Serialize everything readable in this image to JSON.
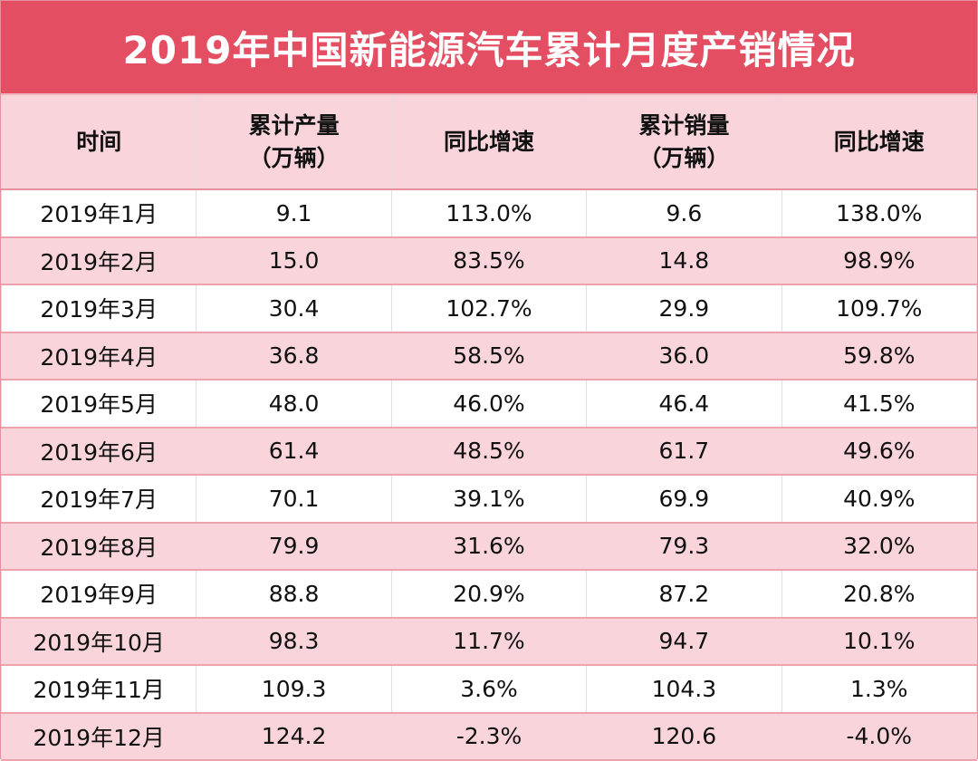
{
  "title": "2019年中国新能源汽车累计月度产销情况",
  "chart_data": {
    "type": "table",
    "title": "2019年中国新能源汽车累计月度产销情况",
    "columns": [
      [
        "时间"
      ],
      [
        "累计产量",
        "（万辆）"
      ],
      [
        "同比增速"
      ],
      [
        "累计销量",
        "（万辆）"
      ],
      [
        "同比增速"
      ]
    ],
    "rows": [
      [
        "2019年1月",
        "9.1",
        "113.0%",
        "9.6",
        "138.0%"
      ],
      [
        "2019年2月",
        "15.0",
        "83.5%",
        "14.8",
        "98.9%"
      ],
      [
        "2019年3月",
        "30.4",
        "102.7%",
        "29.9",
        "109.7%"
      ],
      [
        "2019年4月",
        "36.8",
        "58.5%",
        "36.0",
        "59.8%"
      ],
      [
        "2019年5月",
        "48.0",
        "46.0%",
        "46.4",
        "41.5%"
      ],
      [
        "2019年6月",
        "61.4",
        "48.5%",
        "61.7",
        "49.6%"
      ],
      [
        "2019年7月",
        "70.1",
        "39.1%",
        "69.9",
        "40.9%"
      ],
      [
        "2019年8月",
        "79.9",
        "31.6%",
        "79.3",
        "32.0%"
      ],
      [
        "2019年9月",
        "88.8",
        "20.9%",
        "87.2",
        "20.8%"
      ],
      [
        "2019年10月",
        "98.3",
        "11.7%",
        "94.7",
        "10.1%"
      ],
      [
        "2019年11月",
        "109.3",
        "3.6%",
        "104.3",
        "1.3%"
      ],
      [
        "2019年12月",
        "124.2",
        "-2.3%",
        "120.6",
        "-4.0%"
      ]
    ]
  },
  "colors": {
    "title_bg": "#e34e62",
    "header_bg": "#f9d5db",
    "alt_row_bg": "#f9d5db",
    "grid": "#eda2ad"
  }
}
